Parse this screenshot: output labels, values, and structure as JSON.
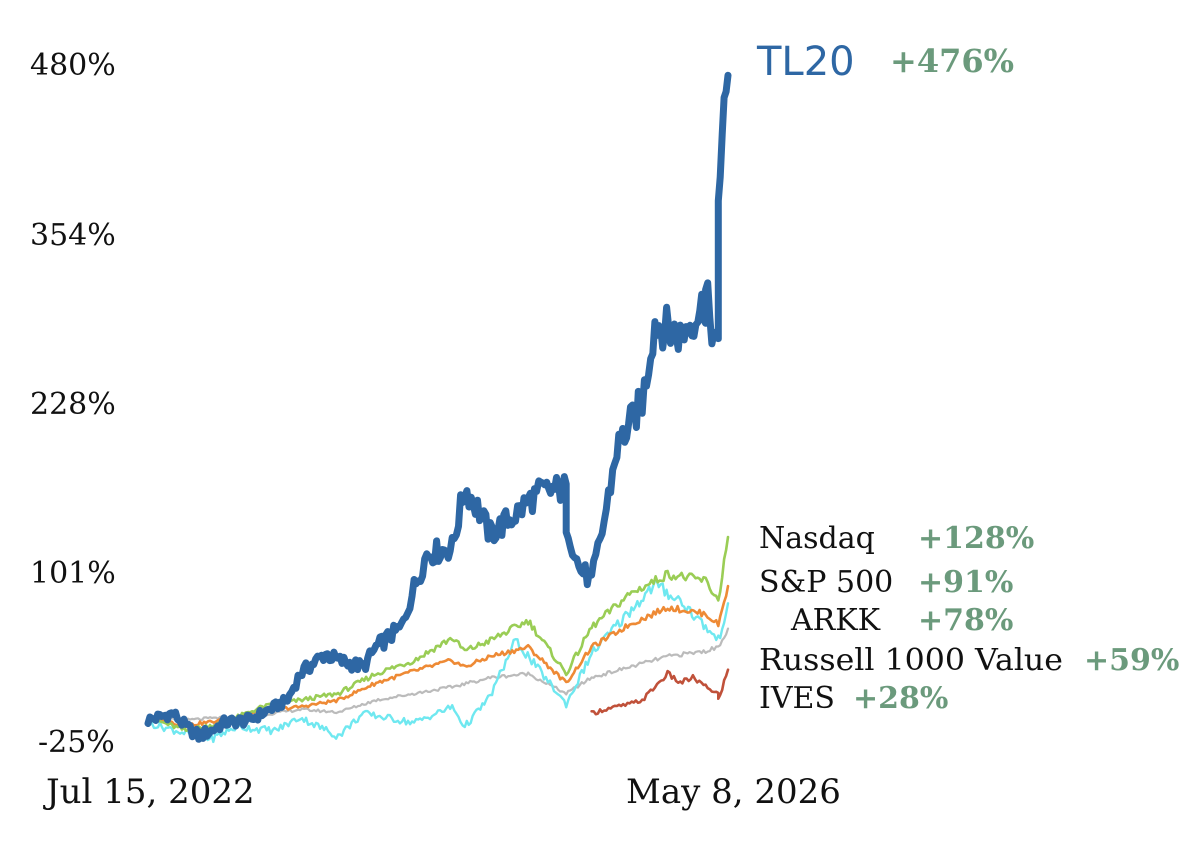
{
  "chart_data": {
    "type": "line",
    "x_start": "Jul 15, 2022",
    "x_end": "May 8, 2026",
    "y_ticks": [
      "480%",
      "354%",
      "228%",
      "101%",
      "-25%"
    ],
    "y_tick_values": [
      480,
      354,
      228,
      101,
      -25
    ],
    "ylim": [
      -25,
      480
    ],
    "series": [
      {
        "name": "TL20",
        "return_label": "+476%",
        "color": "#2E67A4",
        "start": "Jul 15, 2022",
        "x": [
          "Jul 15, 2022",
          "Sep 2022",
          "Oct 2022",
          "Nov 2022",
          "Dec 2022",
          "Jan 2023",
          "Mar 2023",
          "Apr 2023",
          "Jun 2023",
          "Jul 2023",
          "Sep 2023",
          "Oct 2023",
          "Dec 2023",
          "Jan 2024",
          "Mar 2024",
          "Apr 2024",
          "May 2024",
          "Jul 2024",
          "Aug 2024",
          "Sep 2024",
          "Oct 2024",
          "Dec 2024",
          "Jan 2025",
          "Feb 2025",
          "Apr 2025",
          "Apr 2025 ",
          "May 2025",
          "Jun 2025",
          "Jul 2025",
          "Aug 2025",
          "Oct 2025",
          "Nov 2025",
          "Jan 2026",
          "Mar 2026",
          "Mar 2026 ",
          "Apr 2026",
          "Apr 2026 ",
          "May 8, 2026"
        ],
        "values": [
          -10,
          -5,
          -15,
          -22,
          -18,
          -12,
          -10,
          -5,
          5,
          25,
          40,
          35,
          30,
          45,
          60,
          90,
          115,
          120,
          165,
          150,
          130,
          145,
          155,
          162,
          165,
          140,
          105,
          95,
          140,
          195,
          230,
          290,
          280,
          305,
          310,
          265,
          390,
          476
        ]
      },
      {
        "name": "Nasdaq",
        "return_label": "+128%",
        "color": "#9ACD55",
        "start": "Jul 15, 2022",
        "x": [
          "Jul 15, 2022",
          "Oct 2022",
          "Jan 2023",
          "Apr 2023",
          "Jul 2023",
          "Oct 2023",
          "Jan 2024",
          "Apr 2024",
          "Jul 2024",
          "Aug 2024",
          "Oct 2024",
          "Jan 2025",
          "Apr 2025",
          "Jun 2025",
          "Sep 2025",
          "Dec 2025",
          "Mar 2026",
          "Apr 2026",
          "May 8, 2026"
        ],
        "values": [
          -8,
          -18,
          -12,
          0,
          5,
          10,
          25,
          35,
          52,
          42,
          50,
          65,
          25,
          60,
          85,
          100,
          95,
          80,
          128
        ]
      },
      {
        "name": "S&P 500",
        "return_label": "+91%",
        "color": "#EE8A35",
        "start": "Jul 15, 2022",
        "x": [
          "Jul 15, 2022",
          "Oct 2022",
          "Jan 2023",
          "Apr 2023",
          "Jul 2023",
          "Oct 2023",
          "Jan 2024",
          "Apr 2024",
          "Jul 2024",
          "Aug 2024",
          "Oct 2024",
          "Jan 2025",
          "Apr 2025",
          "Jun 2025",
          "Sep 2025",
          "Dec 2025",
          "Mar 2026",
          "Apr 2026",
          "May 8, 2026"
        ],
        "values": [
          -8,
          -14,
          -10,
          -3,
          0,
          5,
          18,
          27,
          35,
          30,
          38,
          45,
          18,
          45,
          62,
          75,
          70,
          62,
          91
        ]
      },
      {
        "name": "ARKK",
        "return_label": "+78%",
        "color": "#6FE8F0",
        "start": "Jul 15, 2022",
        "x": [
          "Jul 15, 2022",
          "Oct 2022",
          "Dec 2022",
          "Feb 2023",
          "May 2023",
          "Jul 2023",
          "Oct 2023",
          "Dec 2023",
          "Apr 2024",
          "Jul 2024",
          "Aug 2024",
          "Oct 2024",
          "Dec 2024",
          "Apr 2025",
          "Jun 2025",
          "Sep 2025",
          "Nov 2025",
          "Jan 2026",
          "Mar 2026",
          "Apr 2026",
          "May 8, 2026"
        ],
        "values": [
          -12,
          -20,
          -24,
          -15,
          -18,
          -8,
          -22,
          -5,
          -12,
          0,
          -15,
          8,
          50,
          2,
          40,
          72,
          92,
          80,
          60,
          50,
          78
        ]
      },
      {
        "name": "Russell 1000 Value",
        "return_label": "+59%",
        "color": "#BBBBBB",
        "start": "Jul 15, 2022",
        "x": [
          "Jul 15, 2022",
          "Oct 2022",
          "Jan 2023",
          "Apr 2023",
          "Jul 2023",
          "Oct 2023",
          "Jan 2024",
          "Apr 2024",
          "Jul 2024",
          "Oct 2024",
          "Jan 2025",
          "Apr 2025",
          "Jun 2025",
          "Sep 2025",
          "Dec 2025",
          "Mar 2026",
          "Apr 2026",
          "May 8, 2026"
        ],
        "values": [
          -8,
          -10,
          -8,
          -6,
          -2,
          -4,
          5,
          10,
          15,
          22,
          25,
          10,
          22,
          30,
          38,
          42,
          45,
          59
        ]
      },
      {
        "name": "IVES",
        "return_label": "+28%",
        "color": "#C0513A",
        "start": "Jun 2025",
        "x": [
          "Jun 2025",
          "Jul 2025",
          "Aug 2025",
          "Sep 2025",
          "Oct 2025",
          "Nov 2025",
          "Dec 2025",
          "Jan 2026",
          "Feb 2026",
          "Mar 2026",
          "Apr 2026",
          "Apr 2026 ",
          "May 8, 2026"
        ],
        "values": [
          -5,
          -2,
          0,
          2,
          5,
          15,
          25,
          18,
          22,
          15,
          10,
          5,
          28
        ]
      }
    ]
  }
}
